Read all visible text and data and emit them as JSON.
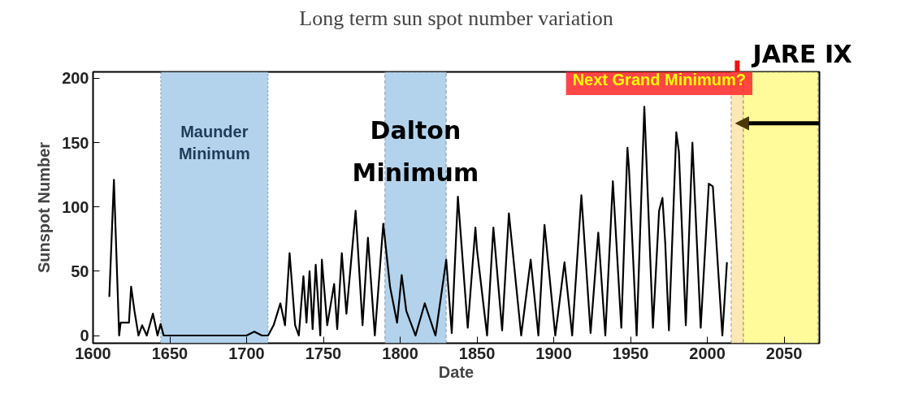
{
  "chart_data": {
    "type": "line",
    "title": "Long term sun spot number variation",
    "xlabel": "Date",
    "ylabel": "Sunspot Number",
    "x": [
      1610.6,
      1613.6,
      1617,
      1618,
      1623.4,
      1624.8,
      1627,
      1629.6,
      1632,
      1635,
      1639,
      1642,
      1644,
      1646,
      1700,
      1705,
      1710,
      1714,
      1717.6,
      1722,
      1725,
      1728,
      1731.6,
      1734,
      1737,
      1739,
      1741,
      1743,
      1745,
      1748,
      1749,
      1752.5,
      1757,
      1759,
      1762,
      1765,
      1771,
      1775.5,
      1779,
      1783.5,
      1789,
      1793.4,
      1798,
      1801,
      1804,
      1810,
      1816,
      1823,
      1830,
      1833.6,
      1837.6,
      1844,
      1849,
      1850,
      1856.6,
      1860.7,
      1866.4,
      1870.8,
      1878.8,
      1885,
      1890,
      1894,
      1901,
      1907,
      1912,
      1918,
      1924,
      1929,
      1933.6,
      1938.5,
      1944,
      1948,
      1949,
      1954,
      1959,
      1964.6,
      1968.6,
      1970.8,
      1972.6,
      1975,
      1979.8,
      1981.5,
      1986,
      1990.3,
      1995.7,
      2001,
      2003.6,
      2009.8,
      2012.8
    ],
    "values": [
      30,
      121,
      0,
      10,
      10,
      38,
      19,
      0,
      8,
      0,
      17,
      0,
      9,
      0,
      0,
      3,
      0,
      0,
      8,
      25,
      8,
      64,
      8,
      0,
      46,
      10,
      50,
      5,
      55,
      0,
      59,
      8,
      40,
      5,
      64,
      17,
      97,
      8,
      76,
      0,
      87,
      38,
      10,
      47,
      19,
      0,
      25,
      0,
      59,
      2,
      108,
      6,
      84,
      67,
      0,
      84,
      4,
      95,
      0,
      59,
      0,
      86,
      0,
      57,
      0,
      109,
      2,
      80,
      0,
      120,
      6,
      146,
      130,
      0,
      178,
      6,
      97,
      107,
      72,
      4,
      158,
      143,
      8,
      150,
      6,
      118,
      116,
      0,
      57
    ],
    "color": "#000000",
    "xlim": [
      1600,
      2073
    ],
    "ylim": [
      -6,
      205
    ],
    "xticks": [
      1600,
      1650,
      1700,
      1750,
      1800,
      1850,
      1900,
      1950,
      2000,
      2050
    ],
    "yticks": [
      0,
      50,
      100,
      150,
      200
    ],
    "bands": [
      {
        "axis": "x",
        "from": 1644,
        "to": 1714,
        "label": "Maunder Minimum",
        "color": "#b3d3ec"
      },
      {
        "axis": "x",
        "from": 1790,
        "to": 1830,
        "label": "Dalton Minimum",
        "color": "#b3d3ec"
      },
      {
        "axis": "x",
        "from": 2015.5,
        "to": 2023.5,
        "label": "JARE Ⅸ",
        "color": "#fde7b4"
      },
      {
        "axis": "x",
        "from": 2023.5,
        "to": 2072,
        "label": "Next Grand Minimum?",
        "color": "#fffa9a"
      }
    ]
  }
}
